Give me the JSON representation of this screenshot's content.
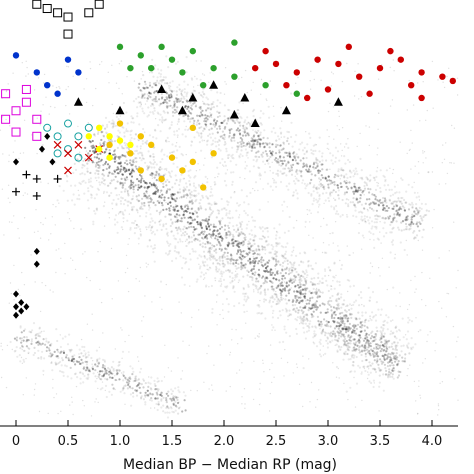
{
  "chart_data": {
    "type": "scatter",
    "title": "",
    "xlabel": "Median BP − Median RP (mag)",
    "ylabel": "",
    "xlim": [
      -0.15,
      4.4
    ],
    "ylim": [
      0,
      1
    ],
    "x_ticks": [
      0,
      0.5,
      1.0,
      1.5,
      2.0,
      2.5,
      3.0,
      3.5,
      4.0
    ],
    "x_tick_labels": [
      "0",
      "0.5",
      "1.0",
      "1.5",
      "2.0",
      "2.5",
      "3.0",
      "3.5",
      "4.0"
    ],
    "grid": false,
    "legend": "none",
    "background": {
      "name": "field-star-density",
      "color": "#000000",
      "sequences": [
        {
          "name": "main-sequence",
          "from": [
            0.7,
            0.66
          ],
          "to": [
            3.7,
            0.14
          ]
        },
        {
          "name": "giant-branch",
          "from": [
            1.2,
            0.8
          ],
          "to": [
            3.9,
            0.47
          ]
        },
        {
          "name": "white-dwarf-sequence",
          "from": [
            0.0,
            0.21
          ],
          "to": [
            1.6,
            0.05
          ]
        }
      ]
    },
    "series": [
      {
        "marker": "filled-circle",
        "color": "#cc0000",
        "points": [
          [
            2.3,
            0.84
          ],
          [
            2.5,
            0.85
          ],
          [
            2.7,
            0.83
          ],
          [
            2.9,
            0.86
          ],
          [
            3.1,
            0.85
          ],
          [
            3.3,
            0.82
          ],
          [
            3.5,
            0.84
          ],
          [
            3.7,
            0.86
          ],
          [
            3.9,
            0.83
          ],
          [
            4.1,
            0.82
          ],
          [
            2.6,
            0.8
          ],
          [
            3.0,
            0.79
          ],
          [
            3.4,
            0.78
          ],
          [
            3.8,
            0.8
          ],
          [
            4.2,
            0.81
          ],
          [
            2.4,
            0.88
          ],
          [
            3.2,
            0.89
          ],
          [
            3.6,
            0.88
          ],
          [
            2.8,
            0.77
          ],
          [
            3.9,
            0.77
          ]
        ]
      },
      {
        "marker": "filled-circle",
        "color": "#2ca02c",
        "points": [
          [
            1.0,
            0.89
          ],
          [
            1.2,
            0.87
          ],
          [
            1.4,
            0.89
          ],
          [
            1.5,
            0.86
          ],
          [
            1.7,
            0.88
          ],
          [
            1.6,
            0.83
          ],
          [
            1.3,
            0.84
          ],
          [
            1.9,
            0.84
          ],
          [
            2.1,
            0.82
          ],
          [
            2.4,
            0.8
          ],
          [
            2.7,
            0.78
          ],
          [
            2.1,
            0.9
          ],
          [
            1.8,
            0.8
          ],
          [
            1.1,
            0.84
          ]
        ]
      },
      {
        "marker": "filled-circle",
        "color": "#f2c200",
        "points": [
          [
            0.9,
            0.66
          ],
          [
            1.1,
            0.64
          ],
          [
            1.3,
            0.66
          ],
          [
            1.5,
            0.63
          ],
          [
            1.7,
            0.62
          ],
          [
            1.9,
            0.64
          ],
          [
            1.2,
            0.6
          ],
          [
            1.4,
            0.58
          ],
          [
            1.6,
            0.6
          ],
          [
            1.0,
            0.71
          ],
          [
            1.7,
            0.7
          ],
          [
            1.8,
            0.56
          ],
          [
            1.2,
            0.68
          ]
        ]
      },
      {
        "marker": "filled-circle",
        "color": "#0033cc",
        "points": [
          [
            0.0,
            0.87
          ],
          [
            0.2,
            0.83
          ],
          [
            0.3,
            0.8
          ],
          [
            0.5,
            0.86
          ],
          [
            0.6,
            0.83
          ],
          [
            0.4,
            0.78
          ]
        ]
      },
      {
        "marker": "open-square",
        "color": "#dd00dd",
        "points": [
          [
            -0.1,
            0.78
          ],
          [
            0.0,
            0.74
          ],
          [
            0.1,
            0.76
          ],
          [
            0.2,
            0.72
          ],
          [
            -0.1,
            0.72
          ],
          [
            0.0,
            0.69
          ],
          [
            0.2,
            0.68
          ],
          [
            0.1,
            0.79
          ]
        ]
      },
      {
        "marker": "open-square",
        "color": "#000000",
        "points": [
          [
            0.2,
            0.99
          ],
          [
            0.3,
            0.98
          ],
          [
            0.4,
            0.97
          ],
          [
            0.5,
            0.96
          ],
          [
            0.7,
            0.97
          ],
          [
            0.8,
            0.99
          ],
          [
            0.5,
            0.92
          ]
        ]
      },
      {
        "marker": "filled-triangle",
        "color": "#000000",
        "points": [
          [
            1.4,
            0.79
          ],
          [
            1.7,
            0.77
          ],
          [
            1.9,
            0.8
          ],
          [
            2.1,
            0.73
          ],
          [
            2.2,
            0.77
          ],
          [
            2.6,
            0.74
          ],
          [
            3.1,
            0.76
          ],
          [
            1.6,
            0.74
          ],
          [
            2.3,
            0.71
          ],
          [
            1.0,
            0.74
          ],
          [
            0.6,
            0.76
          ]
        ]
      },
      {
        "marker": "diamond",
        "color": "#000000",
        "points": [
          [
            0.2,
            0.41
          ],
          [
            0.2,
            0.38
          ],
          [
            0.0,
            0.31
          ],
          [
            0.05,
            0.29
          ],
          [
            0.0,
            0.28
          ],
          [
            0.05,
            0.27
          ],
          [
            0.1,
            0.28
          ],
          [
            0.0,
            0.26
          ]
        ]
      },
      {
        "marker": "plus",
        "color": "#000000",
        "points": [
          [
            0.1,
            0.59
          ],
          [
            0.2,
            0.58
          ],
          [
            0.0,
            0.55
          ],
          [
            0.2,
            0.54
          ],
          [
            0.4,
            0.58
          ]
        ]
      },
      {
        "marker": "diamond",
        "color": "#000000",
        "points": [
          [
            0.25,
            0.65
          ],
          [
            0.35,
            0.62
          ],
          [
            0.3,
            0.68
          ],
          [
            0.0,
            0.62
          ]
        ]
      },
      {
        "marker": "open-circle",
        "color": "#1aa3a3",
        "points": [
          [
            0.3,
            0.7
          ],
          [
            0.4,
            0.68
          ],
          [
            0.5,
            0.71
          ],
          [
            0.6,
            0.68
          ],
          [
            0.7,
            0.7
          ],
          [
            0.4,
            0.64
          ],
          [
            0.5,
            0.65
          ],
          [
            0.6,
            0.63
          ]
        ]
      },
      {
        "marker": "cross",
        "color": "#cc0000",
        "points": [
          [
            0.4,
            0.66
          ],
          [
            0.5,
            0.64
          ],
          [
            0.6,
            0.66
          ],
          [
            0.5,
            0.6
          ],
          [
            0.7,
            0.63
          ],
          [
            0.8,
            0.65
          ]
        ]
      },
      {
        "marker": "filled-circle",
        "color": "#ffff00",
        "points": [
          [
            0.7,
            0.68
          ],
          [
            0.8,
            0.7
          ],
          [
            0.9,
            0.68
          ],
          [
            1.0,
            0.67
          ],
          [
            0.8,
            0.65
          ],
          [
            0.9,
            0.63
          ],
          [
            1.1,
            0.66
          ]
        ]
      }
    ]
  }
}
